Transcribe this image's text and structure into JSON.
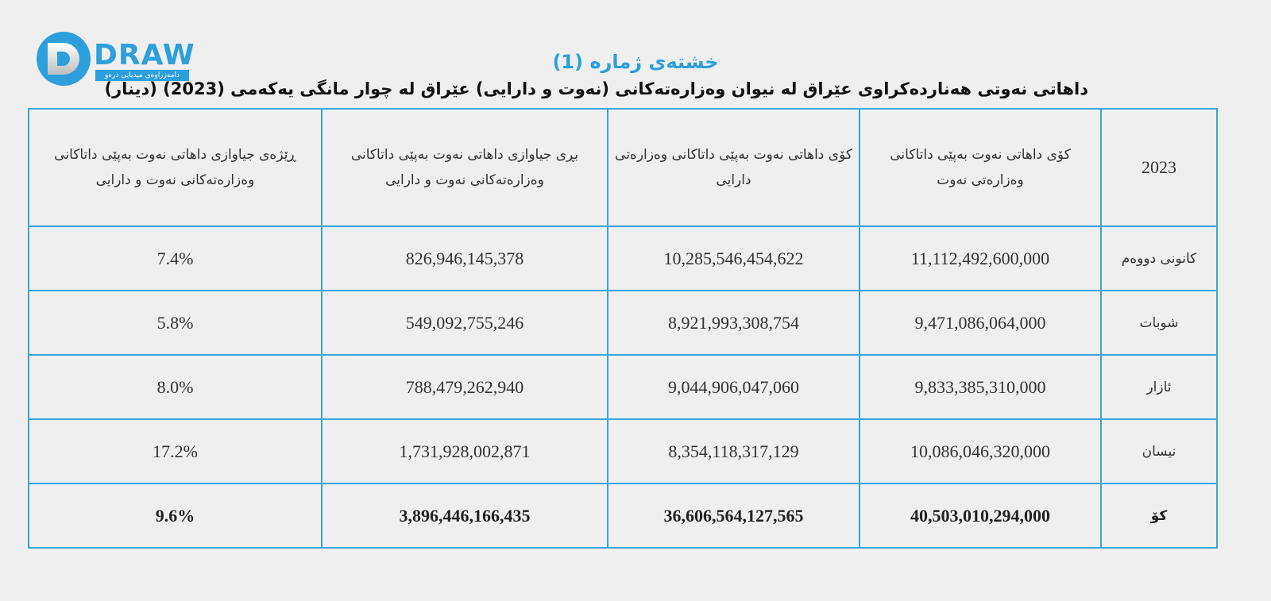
{
  "logo": {
    "text": "DRAW",
    "subtitle": "دامەزراوەی میدیایی درەو"
  },
  "title": "خشتەی ژمارە (1)",
  "subtitle": "داهاتی نەوتی هەناردەکراوی عێراق لە نیوان وەزارەتەکانی (نەوت و دارایی) عێراق لە چوار مانگی یەکەمی (2023) (دینار)",
  "table": {
    "headers": [
      "2023",
      "کۆی داهاتی نەوت بەپێی داتاکانی وەزارەتی نەوت",
      "کۆی داهاتی نەوت بەپێی داتاکانی وەزارەتی دارایی",
      "بڕی جیاوازی داهاتی نەوت بەپێی داتاکانی وەزارەتەکانی نەوت و دارایی",
      "ڕێژەی جیاوازی داهاتی نەوت بەپێی داتاکانی وەزارەتەکانی نەوت و دارایی"
    ],
    "rows": [
      [
        "کانونی دووەم",
        "11,112,492,600,000",
        "10,285,546,454,622",
        "826,946,145,378",
        "7.4%"
      ],
      [
        "شوبات",
        "9,471,086,064,000",
        "8,921,993,308,754",
        "549,092,755,246",
        "5.8%"
      ],
      [
        "ئازار",
        "9,833,385,310,000",
        "9,044,906,047,060",
        "788,479,262,940",
        "8.0%"
      ],
      [
        "نیسان",
        "10,086,046,320,000",
        "8,354,118,317,129",
        "1,731,928,002,871",
        "17.2%"
      ]
    ],
    "total": [
      "کۆ",
      "40,503,010,294,000",
      "36,606,564,127,565",
      "3,896,446,166,435",
      "9.6%"
    ]
  }
}
